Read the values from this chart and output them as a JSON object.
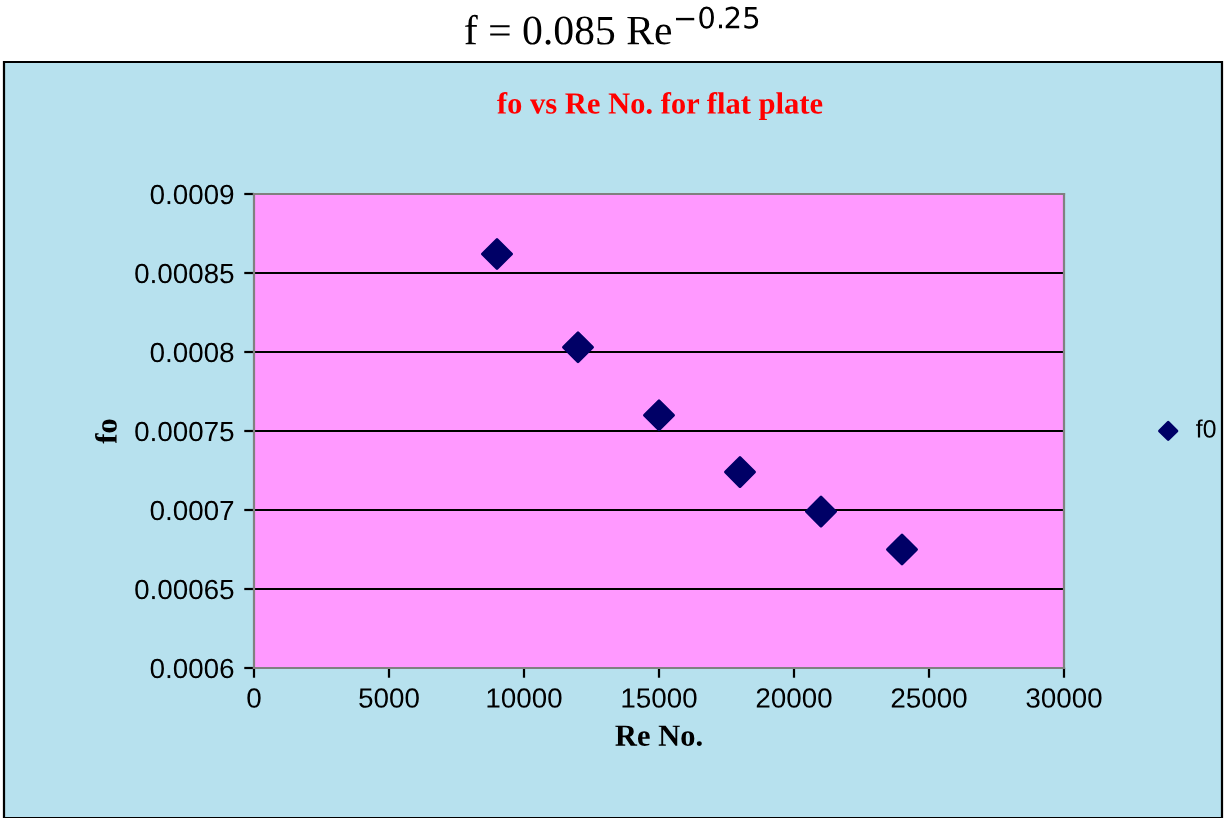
{
  "chart_data": {
    "type": "scatter",
    "title": "f = 0.085 Re$^{−0.25}$",
    "subtitle": "fo vs Re No. for flat plate",
    "xlabel": "Re No.",
    "ylabel": "fo",
    "x": [
      9000,
      12000,
      15000,
      18000,
      21000,
      24000
    ],
    "series": [
      {
        "name": "f0",
        "color": "#000066",
        "values": [
          0.000862,
          0.000803,
          0.00076,
          0.000724,
          0.000699,
          0.000675
        ]
      }
    ],
    "xlim": [
      0,
      30000
    ],
    "xticks": [
      0,
      5000,
      10000,
      15000,
      20000,
      25000,
      30000
    ],
    "ylim": [
      0.0006,
      0.0009
    ],
    "yticks": [
      {
        "value": 0.0006,
        "label": "0.0006"
      },
      {
        "value": 0.00065,
        "label": "0.00065"
      },
      {
        "value": 0.0007,
        "label": "0.0007"
      },
      {
        "value": 0.00075,
        "label": "0.00075"
      },
      {
        "value": 0.0008,
        "label": "0.0008"
      },
      {
        "value": 0.00085,
        "label": "0.00085"
      },
      {
        "value": 0.0009,
        "label": "0.0009"
      }
    ],
    "grid": "y",
    "legend": "right",
    "marker": "diamond"
  }
}
